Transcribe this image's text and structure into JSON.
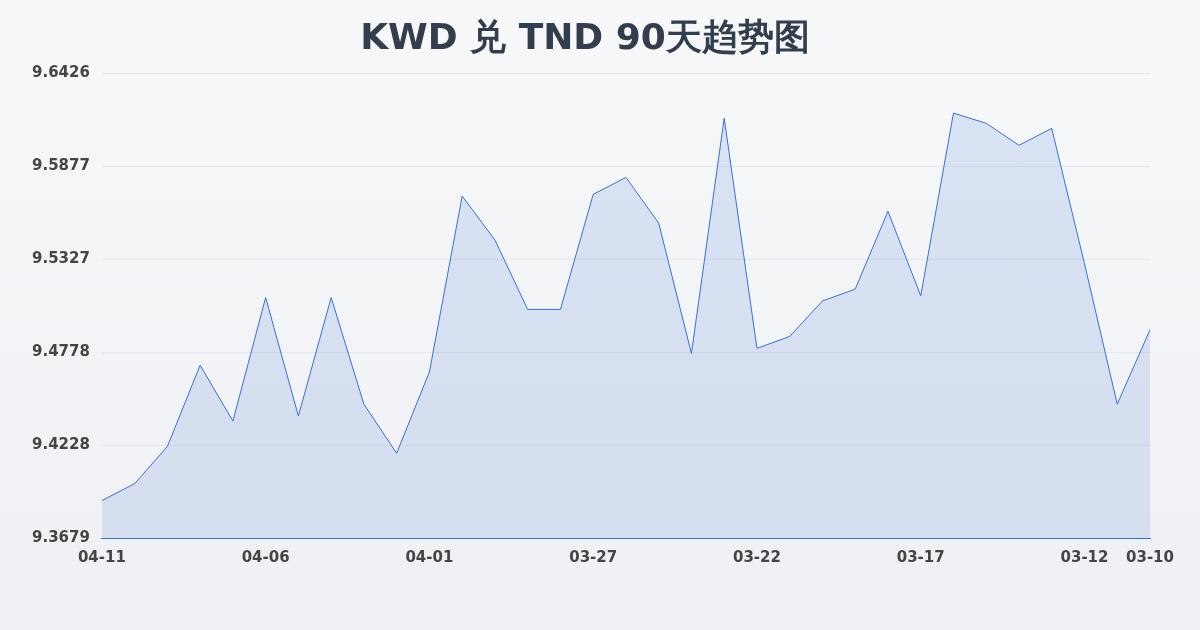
{
  "chart_data": {
    "type": "area",
    "title": "KWD 兑 TND 90天趋势图",
    "categories": [
      "04-11",
      null,
      null,
      null,
      null,
      "04-06",
      null,
      null,
      null,
      null,
      "04-01",
      null,
      null,
      null,
      null,
      "03-27",
      null,
      null,
      null,
      null,
      "03-22",
      null,
      null,
      null,
      null,
      "03-17",
      null,
      null,
      null,
      null,
      "03-12",
      null,
      "03-10"
    ],
    "series": [
      {
        "color": "#3a6fd8",
        "values": [
          9.39,
          9.4,
          9.422,
          9.47,
          9.437,
          9.51,
          9.44,
          9.51,
          9.447,
          9.418,
          9.466,
          9.57,
          9.544,
          9.503,
          9.503,
          9.571,
          9.581,
          9.554,
          9.477,
          9.616,
          9.48,
          9.487,
          9.508,
          9.515,
          9.561,
          9.511,
          9.619,
          9.613,
          9.6,
          9.61,
          9.53,
          9.447,
          9.491
        ]
      }
    ],
    "ylim": [
      9.3679,
      9.6426
    ],
    "yticks": [
      9.3679,
      9.4228,
      9.4778,
      9.5327,
      9.5877,
      9.6426
    ],
    "grid": "y",
    "legend": false
  }
}
